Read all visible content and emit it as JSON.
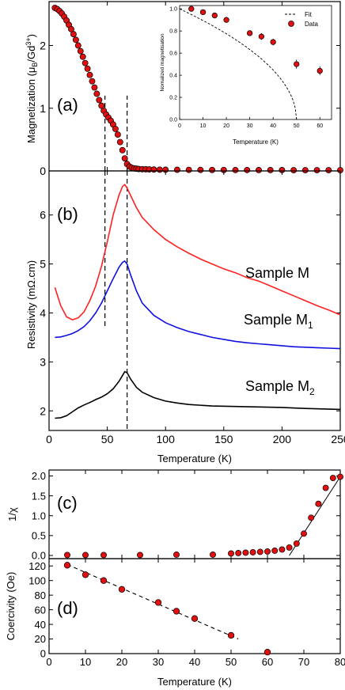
{
  "colors": {
    "marker": "#e01010",
    "red": "#ff2020",
    "blue": "#1010e0",
    "black": "#000000"
  },
  "chart_data": [
    {
      "id": "a",
      "type": "scatter",
      "panel_label": "(a)",
      "ylabel": "Magnetization (μB/Gd3+)",
      "ylabel_parts": [
        "Magnetization (",
        "μ",
        "B",
        "/Gd",
        "3+",
        ")"
      ],
      "ylim": [
        0,
        2.7
      ],
      "yticks": [
        "0",
        "1",
        "2"
      ],
      "xlim": [
        0,
        250
      ],
      "vlines": [
        48,
        67
      ],
      "series": [
        {
          "x": [
            5,
            7,
            9,
            11,
            13,
            15,
            17,
            19,
            21,
            23,
            25,
            27,
            29,
            31,
            33,
            35,
            37,
            39,
            41,
            43,
            45,
            47,
            49,
            51,
            53,
            55,
            57,
            59,
            61,
            63,
            65,
            67,
            69,
            71,
            73,
            75,
            77,
            80,
            83,
            86,
            90,
            95,
            100,
            110,
            120,
            130,
            140,
            150,
            160,
            170,
            180,
            190,
            200,
            210,
            220,
            230,
            240,
            250
          ],
          "y": [
            2.6,
            2.58,
            2.55,
            2.51,
            2.46,
            2.4,
            2.33,
            2.26,
            2.18,
            2.09,
            2.0,
            1.91,
            1.82,
            1.72,
            1.63,
            1.53,
            1.43,
            1.33,
            1.23,
            1.13,
            1.04,
            0.96,
            0.9,
            0.85,
            0.8,
            0.74,
            0.67,
            0.58,
            0.46,
            0.33,
            0.2,
            0.11,
            0.07,
            0.05,
            0.04,
            0.035,
            0.03,
            0.028,
            0.026,
            0.024,
            0.022,
            0.02,
            0.019,
            0.018,
            0.017,
            0.016,
            0.015,
            0.015,
            0.014,
            0.014,
            0.013,
            0.013,
            0.013,
            0.012,
            0.012,
            0.012,
            0.012,
            0.012
          ]
        }
      ]
    },
    {
      "id": "inset",
      "type": "scatter",
      "xlabel": "Temperature (K)",
      "ylabel": "Nomalized magnetisation",
      "xlim": [
        0,
        65
      ],
      "ylim": [
        0,
        1.03
      ],
      "xticks": [
        "0",
        "10",
        "20",
        "30",
        "40",
        "50",
        "60"
      ],
      "yticks": [
        "0.0",
        "0.2",
        "0.4",
        "0.6",
        "0.8",
        "1.0"
      ],
      "legend": {
        "placement": "top-right",
        "fit": "Fit",
        "data": "Data"
      },
      "series": [
        {
          "name": "Data",
          "x": [
            5,
            10,
            15,
            20,
            30,
            35,
            40,
            50,
            60
          ],
          "y": [
            1.0,
            0.97,
            0.94,
            0.9,
            0.78,
            0.75,
            0.7,
            0.5,
            0.44
          ],
          "err": [
            0.01,
            0.01,
            0.02,
            0.02,
            0.02,
            0.03,
            0.03,
            0.04,
            0.04
          ]
        },
        {
          "name": "Fit",
          "style": "dashed",
          "Tc": 50,
          "beta": 0.5
        }
      ]
    },
    {
      "id": "b",
      "type": "line",
      "panel_label": "(b)",
      "xlabel": "Temperature (K)",
      "ylabel": "Resistivity (mΩ.cm)",
      "xlim": [
        0,
        250
      ],
      "ylim": [
        1.6,
        6.9
      ],
      "xticks": [
        "0",
        "50",
        "100",
        "150",
        "200",
        "250"
      ],
      "yticks": [
        "2",
        "3",
        "4",
        "5",
        "6"
      ],
      "vlines": [
        48,
        67
      ],
      "series": [
        {
          "name": "Sample M",
          "name_parts": [
            "Sample M",
            ""
          ],
          "color": "red",
          "x": [
            5,
            10,
            15,
            20,
            25,
            30,
            35,
            40,
            45,
            50,
            55,
            60,
            63,
            65,
            67,
            70,
            75,
            80,
            90,
            100,
            110,
            120,
            130,
            140,
            150,
            160,
            170,
            180,
            190,
            200,
            210,
            220,
            230,
            240,
            250
          ],
          "y": [
            4.52,
            4.15,
            3.92,
            3.86,
            3.9,
            4.02,
            4.25,
            4.55,
            4.95,
            5.45,
            6.0,
            6.4,
            6.58,
            6.62,
            6.55,
            6.4,
            6.15,
            5.95,
            5.7,
            5.5,
            5.35,
            5.22,
            5.1,
            5.0,
            4.9,
            4.82,
            4.72,
            4.65,
            4.55,
            4.45,
            4.35,
            4.25,
            4.15,
            4.06,
            3.96
          ]
        },
        {
          "name": "Sample M1",
          "name_parts": [
            "Sample M",
            "1"
          ],
          "color": "blue",
          "x": [
            5,
            10,
            15,
            20,
            25,
            30,
            35,
            40,
            45,
            50,
            55,
            60,
            63,
            65,
            67,
            70,
            75,
            80,
            90,
            100,
            110,
            120,
            130,
            140,
            150,
            160,
            170,
            180,
            190,
            200,
            210,
            220,
            230,
            240,
            250
          ],
          "y": [
            3.5,
            3.51,
            3.54,
            3.58,
            3.64,
            3.72,
            3.84,
            4.0,
            4.2,
            4.45,
            4.7,
            4.93,
            5.03,
            5.06,
            5.0,
            4.78,
            4.45,
            4.2,
            3.95,
            3.8,
            3.7,
            3.62,
            3.56,
            3.5,
            3.46,
            3.42,
            3.39,
            3.37,
            3.35,
            3.33,
            3.31,
            3.3,
            3.29,
            3.28,
            3.27
          ]
        },
        {
          "name": "Sample M2",
          "name_parts": [
            "Sample M",
            "2"
          ],
          "color": "black",
          "x": [
            5,
            10,
            15,
            20,
            25,
            30,
            35,
            40,
            45,
            50,
            55,
            60,
            63,
            65,
            67,
            70,
            75,
            80,
            90,
            100,
            110,
            120,
            140,
            160,
            180,
            200,
            220,
            250
          ],
          "y": [
            1.85,
            1.86,
            1.9,
            1.98,
            2.06,
            2.12,
            2.17,
            2.23,
            2.28,
            2.35,
            2.45,
            2.6,
            2.72,
            2.8,
            2.78,
            2.65,
            2.48,
            2.38,
            2.27,
            2.2,
            2.16,
            2.13,
            2.1,
            2.09,
            2.08,
            2.07,
            2.05,
            2.03
          ]
        }
      ]
    },
    {
      "id": "c",
      "type": "scatter",
      "panel_label": "(c)",
      "ylabel": "1/χ",
      "xlim": [
        0,
        80
      ],
      "ylim": [
        -0.08,
        2.15
      ],
      "yticks": [
        "0.0",
        "0.5",
        "1.0",
        "1.5",
        "2.0"
      ],
      "fit_line": {
        "x": [
          66,
          80
        ],
        "y": [
          0.0,
          1.98
        ]
      },
      "series": [
        {
          "x": [
            5,
            10,
            15,
            25,
            35,
            45,
            50,
            52,
            54,
            56,
            58,
            60,
            62,
            64,
            66,
            68,
            70,
            72,
            74,
            76,
            78,
            80
          ],
          "y": [
            0.01,
            0.01,
            0.01,
            0.01,
            0.02,
            0.02,
            0.05,
            0.06,
            0.07,
            0.08,
            0.09,
            0.1,
            0.12,
            0.15,
            0.2,
            0.3,
            0.55,
            0.95,
            1.3,
            1.7,
            1.95,
            1.98
          ]
        }
      ]
    },
    {
      "id": "d",
      "type": "scatter",
      "panel_label": "(d)",
      "xlabel": "Temperature (K)",
      "ylabel": "Coercivity (Oe)",
      "xlim": [
        0,
        80
      ],
      "ylim": [
        0,
        130
      ],
      "xticks": [
        "0",
        "10",
        "20",
        "30",
        "40",
        "50",
        "60",
        "70",
        "80"
      ],
      "yticks": [
        "0",
        "20",
        "40",
        "60",
        "80",
        "100",
        "120"
      ],
      "fit_line": {
        "x": [
          5,
          52
        ],
        "y": [
          122,
          20
        ]
      },
      "series": [
        {
          "x": [
            5,
            10,
            15,
            20,
            30,
            35,
            40,
            50,
            60
          ],
          "y": [
            121,
            108,
            100,
            88,
            70,
            58,
            48,
            25,
            2
          ]
        }
      ]
    }
  ]
}
